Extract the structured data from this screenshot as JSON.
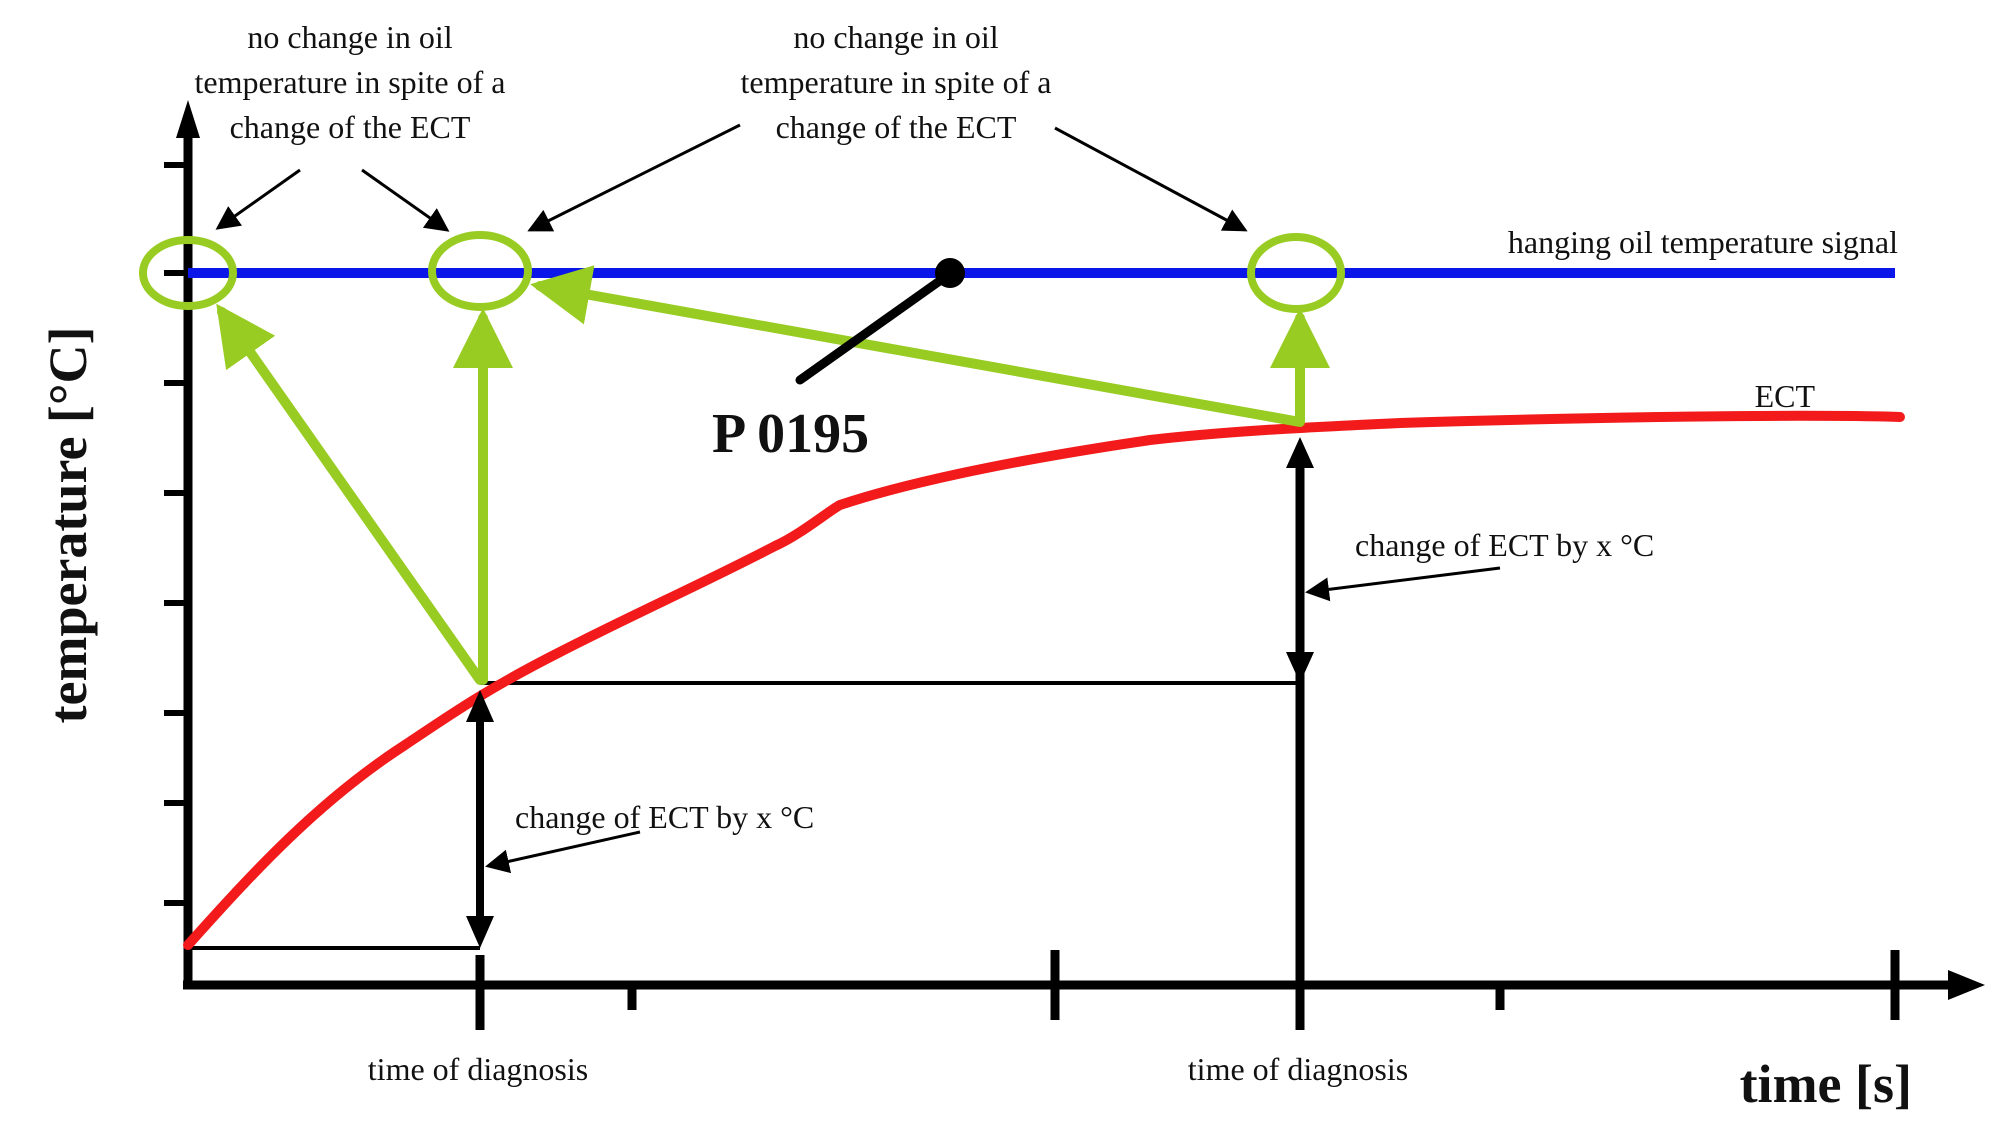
{
  "annotations": {
    "left_note": [
      "no change in oil",
      "temperature in spite of a",
      "change of the ECT"
    ],
    "right_note": [
      "no change in oil",
      "temperature in spite of a",
      "change of the ECT"
    ],
    "oil_signal_label": "hanging oil temperature signal",
    "ect_label": "ECT",
    "fault_code": "P 0195",
    "change_lower": "change of ECT by x °C",
    "change_upper": "change of ECT by x °C",
    "diagnosis_1": "time of diagnosis",
    "diagnosis_2": "time of diagnosis"
  },
  "axes": {
    "x_label": "time [s]",
    "y_label": "temperature [°C]"
  },
  "colors": {
    "oil_signal": "#0a17e8",
    "ect": "#f21a1a",
    "check_markers": "#99cc22",
    "axis": "#000000"
  }
}
